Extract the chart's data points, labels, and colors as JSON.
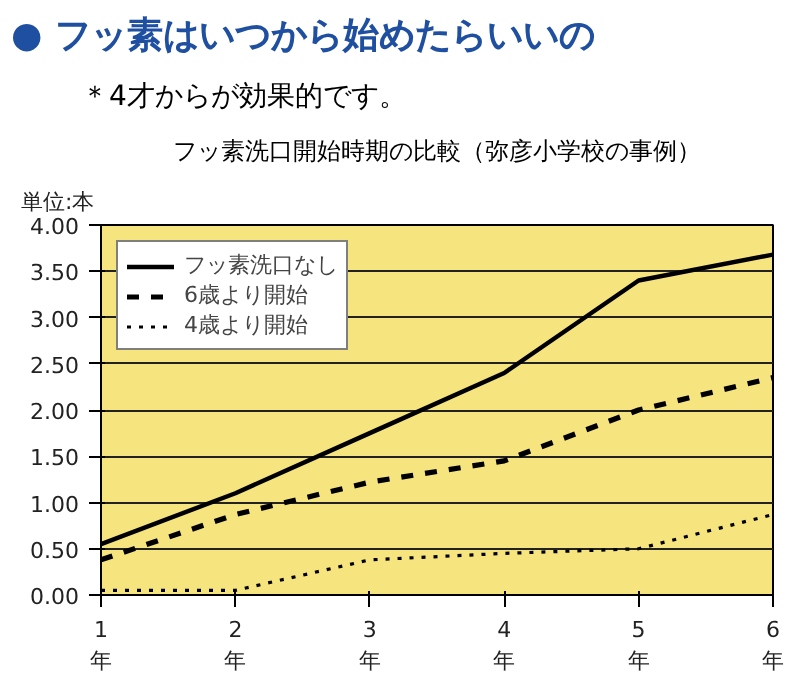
{
  "chart_data": {
    "type": "line",
    "title": "● フッ素はいつから始めたらいいの",
    "subtitle": "＊4才からが効果的です。",
    "annotations": [
      "フッ素洗口開始時期の比較（弥彦小学校の事例）"
    ],
    "ylabel": "単位:本",
    "categories": [
      "1\n年",
      "2\n年",
      "3\n年",
      "4\n年",
      "5\n年",
      "6\n年"
    ],
    "series": [
      {
        "name": "フッ素洗口なし",
        "color": "#000000",
        "line_style": "solid",
        "values": [
          0.55,
          1.1,
          1.75,
          2.4,
          3.4,
          3.68
        ]
      },
      {
        "name": "6歳より開始",
        "color": "#000000",
        "line_style": "dashed",
        "values": [
          0.38,
          0.87,
          1.22,
          1.45,
          2.0,
          2.35
        ]
      },
      {
        "name": "4歳より開始",
        "color": "#000000",
        "line_style": "dotted",
        "values": [
          0.05,
          0.05,
          0.38,
          0.45,
          0.5,
          0.87
        ]
      }
    ],
    "ylim": [
      0,
      4
    ],
    "yticks": [
      {
        "value": 0,
        "label": "0.00"
      },
      {
        "value": 0.5,
        "label": "0.50"
      },
      {
        "value": 1,
        "label": "1.00"
      },
      {
        "value": 1.5,
        "label": "1.50"
      },
      {
        "value": 2,
        "label": "2.00"
      },
      {
        "value": 2.5,
        "label": "2.50"
      },
      {
        "value": 3,
        "label": "3.00"
      },
      {
        "value": 3.5,
        "label": "3.50"
      },
      {
        "value": 4,
        "label": "4.00"
      }
    ],
    "grid": "y",
    "legend": "top left",
    "marker": "none"
  }
}
